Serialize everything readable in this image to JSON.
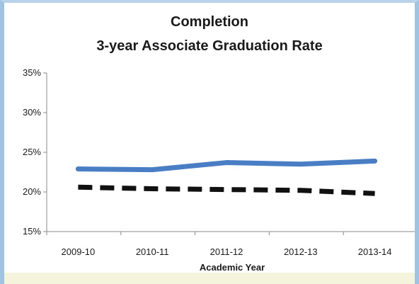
{
  "chart_data": {
    "type": "line",
    "title": "Completion",
    "subtitle": "3-year Associate Graduation Rate",
    "xlabel": "Academic Year",
    "ylabel": "",
    "categories": [
      "2009-10",
      "2010-11",
      "2011-12",
      "2012-13",
      "2013-14"
    ],
    "ylim": [
      15,
      35
    ],
    "yticks": [
      "15%",
      "20%",
      "25%",
      "30%",
      "35%"
    ],
    "grid": false,
    "legend": "none",
    "series": [
      {
        "values": [
          22.9,
          22.8,
          23.7,
          23.5,
          23.9
        ],
        "color": "#4a7ec4",
        "style": "solid"
      },
      {
        "values": [
          20.6,
          20.4,
          20.3,
          20.2,
          19.8
        ],
        "color": "#111111",
        "style": "dashed"
      }
    ]
  }
}
